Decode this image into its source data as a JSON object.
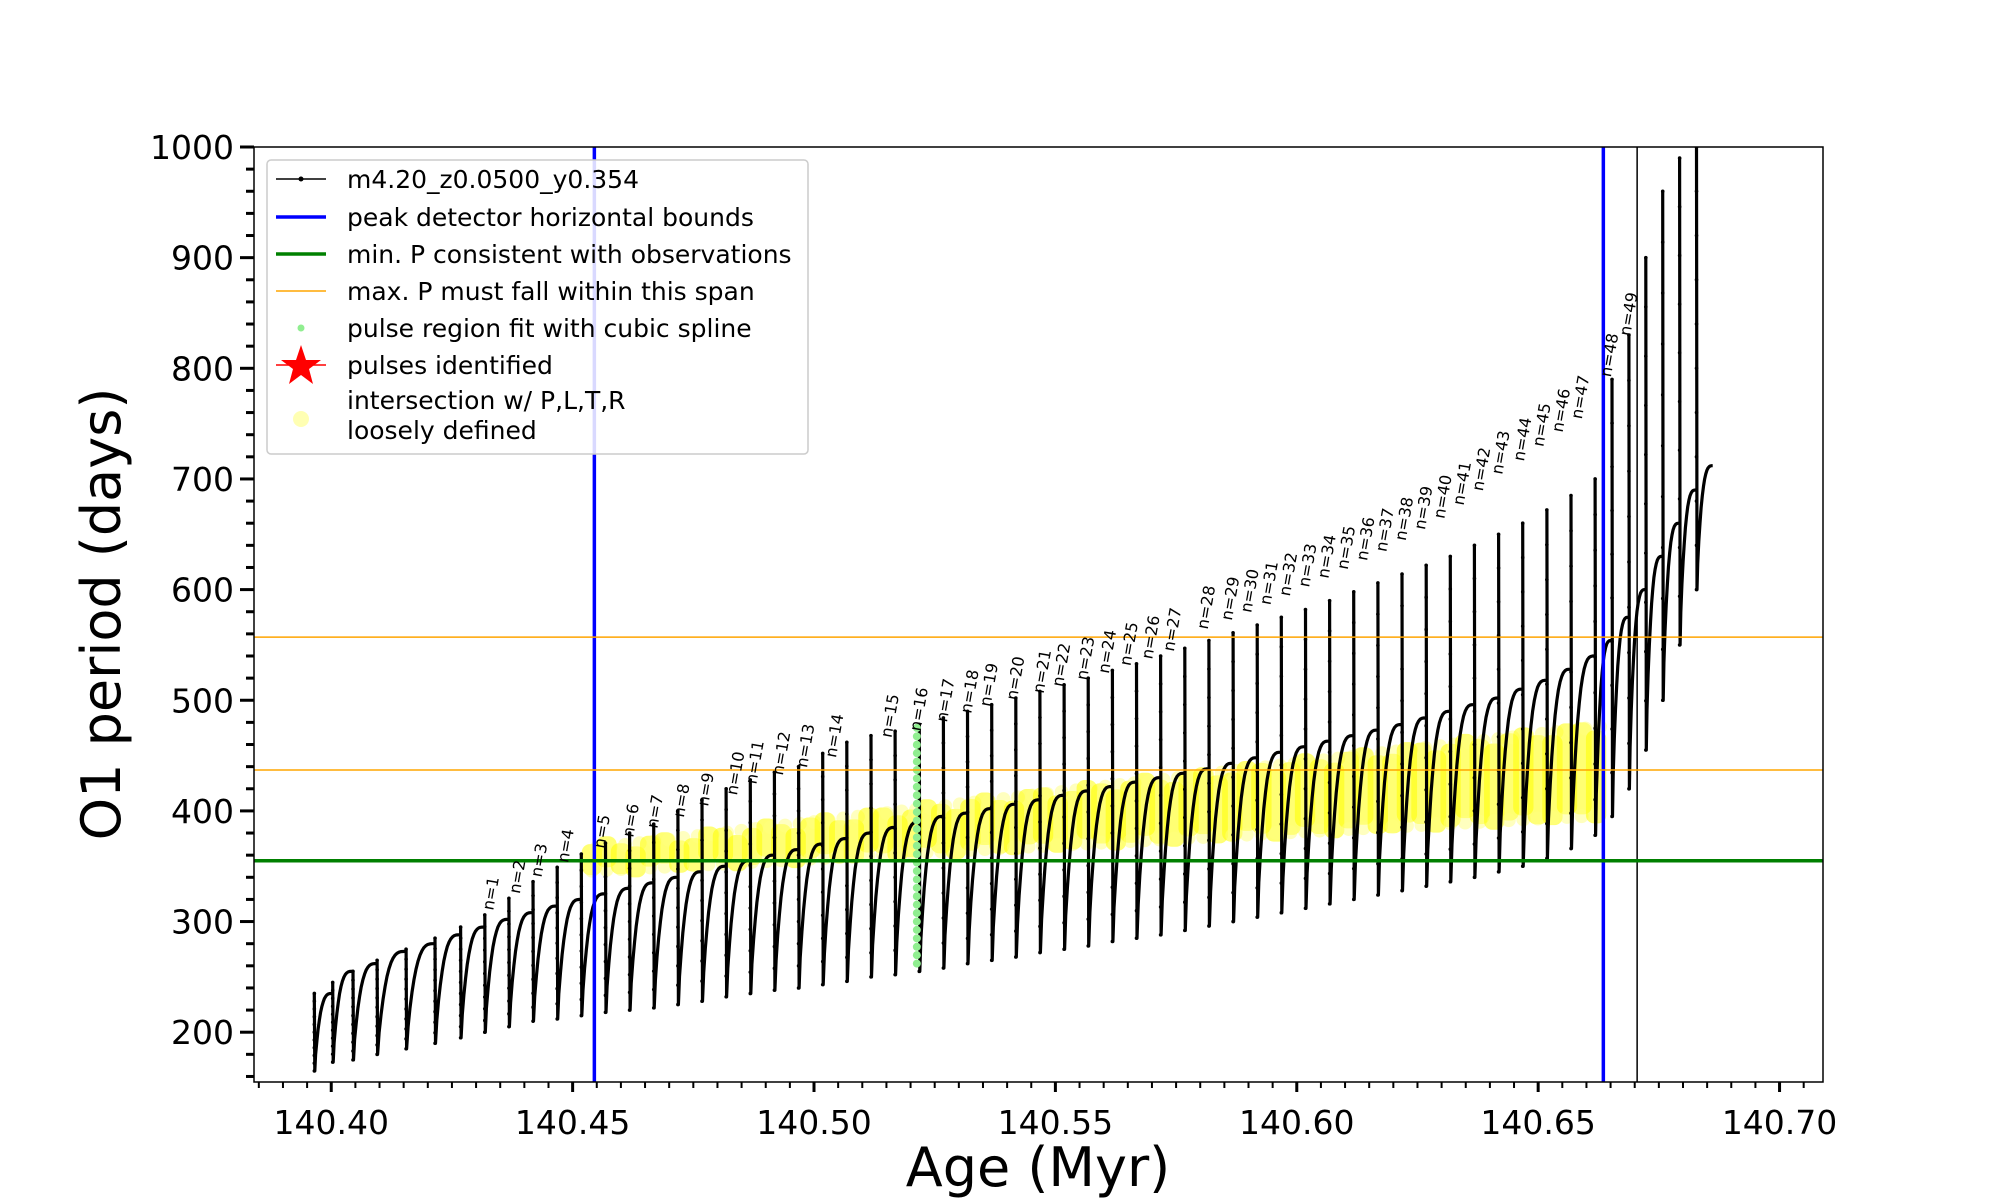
{
  "chart_data": {
    "type": "line",
    "xlabel": "Age (Myr)",
    "ylabel": "O1 period (days)",
    "xlim": [
      140.384,
      140.709
    ],
    "ylim": [
      155,
      1000
    ],
    "xticks": [
      140.4,
      140.45,
      140.5,
      140.55,
      140.6,
      140.65,
      140.7
    ],
    "xtick_labels": [
      "140.40",
      "140.45",
      "140.50",
      "140.55",
      "140.60",
      "140.65",
      "140.70"
    ],
    "yticks": [
      200,
      300,
      400,
      500,
      600,
      700,
      800,
      900,
      1000
    ],
    "ytick_labels": [
      "200",
      "300",
      "400",
      "500",
      "600",
      "700",
      "800",
      "900",
      "1000"
    ],
    "legend": {
      "position": "upper-left",
      "entries": [
        {
          "label": "m4.20_z0.0500_y0.354",
          "style": "line-dot",
          "color": "#000000"
        },
        {
          "label": "peak detector horizontal bounds",
          "style": "line",
          "color": "#0000ff"
        },
        {
          "label": "min. P consistent with observations",
          "style": "line",
          "color": "#008000"
        },
        {
          "label": "max. P must fall within this span",
          "style": "line",
          "color": "#ffa500"
        },
        {
          "label": "pulse region fit with cubic spline",
          "style": "dot",
          "color": "#90ee90"
        },
        {
          "label": "pulses identified",
          "style": "star",
          "color": "#ff0000"
        },
        {
          "label": "intersection w/ P,L,T,R",
          "label2": "loosely defined",
          "style": "dot",
          "color": "#ffff80"
        }
      ]
    },
    "vlines": [
      {
        "x": 140.4545,
        "color": "#0000ff",
        "name": "peak-detector-left-bound"
      },
      {
        "x": 140.6635,
        "color": "#0000ff",
        "name": "peak-detector-right-bound"
      },
      {
        "x": 140.6705,
        "color": "#000000",
        "name": "track-jump"
      }
    ],
    "hlines": [
      {
        "y": 355,
        "color": "#008000",
        "name": "min-period-line"
      },
      {
        "y": 437,
        "color": "#ffa500",
        "name": "max-period-lower-line"
      },
      {
        "y": 557,
        "color": "#ffa500",
        "name": "max-period-upper-line"
      }
    ],
    "series": {
      "name": "m4.20_z0.0500_y0.354",
      "note": "thermal-pulse cycles; each cycle starts at start_x with period low, rises to trough_top, spikes to peak",
      "cycles": [
        {
          "n": 1,
          "start_x": 140.3965,
          "low": 165,
          "trough_top": 235,
          "peak": 235
        },
        {
          "n": 2,
          "start_x": 140.4003,
          "low": 173,
          "trough_top": 255,
          "peak": 245
        },
        {
          "n": 3,
          "start_x": 140.4045,
          "low": 175,
          "trough_top": 262,
          "peak": 255
        },
        {
          "n": 4,
          "start_x": 140.4095,
          "low": 180,
          "trough_top": 273,
          "peak": 265
        },
        {
          "n": 5,
          "start_x": 140.4155,
          "low": 185,
          "trough_top": 280,
          "peak": 275
        },
        {
          "n": 6,
          "start_x": 140.4215,
          "low": 190,
          "trough_top": 288,
          "peak": 285
        },
        {
          "n": 7,
          "start_x": 140.4268,
          "low": 195,
          "trough_top": 295,
          "peak": 295
        },
        {
          "n": 8,
          "start_x": 140.4318,
          "low": 200,
          "trough_top": 302,
          "peak": 306
        },
        {
          "n": 9,
          "start_x": 140.4368,
          "low": 205,
          "trough_top": 308,
          "peak": 321
        },
        {
          "n": 10,
          "start_x": 140.4418,
          "low": 210,
          "trough_top": 314,
          "peak": 336
        },
        {
          "n": 11,
          "start_x": 140.4468,
          "low": 212,
          "trough_top": 320,
          "peak": 349
        },
        {
          "n": 12,
          "start_x": 140.4518,
          "low": 215,
          "trough_top": 325,
          "peak": 361
        },
        {
          "n": 13,
          "start_x": 140.4568,
          "low": 218,
          "trough_top": 330,
          "peak": 371
        },
        {
          "n": 14,
          "start_x": 140.4618,
          "low": 220,
          "trough_top": 335,
          "peak": 380
        },
        {
          "n": 15,
          "start_x": 140.4668,
          "low": 222,
          "trough_top": 340,
          "peak": 388
        },
        {
          "n": 16,
          "start_x": 140.4718,
          "low": 225,
          "trough_top": 345,
          "peak": 400
        },
        {
          "n": 17,
          "start_x": 140.4768,
          "low": 228,
          "trough_top": 350,
          "peak": 410
        },
        {
          "n": 18,
          "start_x": 140.4818,
          "low": 232,
          "trough_top": 355,
          "peak": 420
        },
        {
          "n": 19,
          "start_x": 140.4868,
          "low": 235,
          "trough_top": 360,
          "peak": 428
        },
        {
          "n": 20,
          "start_x": 140.4918,
          "low": 238,
          "trough_top": 365,
          "peak": 435
        },
        {
          "n": 21,
          "start_x": 140.4968,
          "low": 240,
          "trough_top": 370,
          "peak": 440
        },
        {
          "n": 22,
          "start_x": 140.5018,
          "low": 243,
          "trough_top": 375,
          "peak": 452
        },
        {
          "n": 23,
          "start_x": 140.5068,
          "low": 246,
          "trough_top": 380,
          "peak": 462
        },
        {
          "n": 24,
          "start_x": 140.5118,
          "low": 250,
          "trough_top": 385,
          "peak": 468
        },
        {
          "n": 25,
          "start_x": 140.5168,
          "low": 252,
          "trough_top": 390,
          "peak": 472
        },
        {
          "n": 26,
          "start_x": 140.5218,
          "low": 255,
          "trough_top": 395,
          "peak": 478
        },
        {
          "n": 27,
          "start_x": 140.5268,
          "low": 258,
          "trough_top": 398,
          "peak": 484
        },
        {
          "n": 28,
          "start_x": 140.5318,
          "low": 262,
          "trough_top": 402,
          "peak": 490
        },
        {
          "n": 29,
          "start_x": 140.5368,
          "low": 265,
          "trough_top": 406,
          "peak": 496
        },
        {
          "n": 30,
          "start_x": 140.5418,
          "low": 268,
          "trough_top": 410,
          "peak": 502
        },
        {
          "n": 31,
          "start_x": 140.5468,
          "low": 272,
          "trough_top": 414,
          "peak": 508
        },
        {
          "n": 32,
          "start_x": 140.5518,
          "low": 275,
          "trough_top": 418,
          "peak": 514
        },
        {
          "n": 33,
          "start_x": 140.5568,
          "low": 278,
          "trough_top": 422,
          "peak": 520
        },
        {
          "n": 34,
          "start_x": 140.5618,
          "low": 282,
          "trough_top": 426,
          "peak": 527
        },
        {
          "n": 35,
          "start_x": 140.5668,
          "low": 285,
          "trough_top": 430,
          "peak": 533
        },
        {
          "n": 36,
          "start_x": 140.5718,
          "low": 288,
          "trough_top": 434,
          "peak": 540
        },
        {
          "n": 37,
          "start_x": 140.5768,
          "low": 292,
          "trough_top": 438,
          "peak": 547
        },
        {
          "n": 38,
          "start_x": 140.5818,
          "low": 296,
          "trough_top": 443,
          "peak": 554
        },
        {
          "n": 39,
          "start_x": 140.5868,
          "low": 300,
          "trough_top": 448,
          "peak": 561
        },
        {
          "n": 40,
          "start_x": 140.5918,
          "low": 304,
          "trough_top": 453,
          "peak": 568
        },
        {
          "n": 41,
          "start_x": 140.5968,
          "low": 308,
          "trough_top": 458,
          "peak": 575
        },
        {
          "n": 42,
          "start_x": 140.6018,
          "low": 312,
          "trough_top": 463,
          "peak": 582
        },
        {
          "n": 43,
          "start_x": 140.6068,
          "low": 316,
          "trough_top": 468,
          "peak": 590
        },
        {
          "n": 44,
          "start_x": 140.6118,
          "low": 320,
          "trough_top": 473,
          "peak": 598
        },
        {
          "n": 45,
          "start_x": 140.6168,
          "low": 324,
          "trough_top": 478,
          "peak": 606
        },
        {
          "n": 46,
          "start_x": 140.6218,
          "low": 328,
          "trough_top": 484,
          "peak": 614
        },
        {
          "n": 47,
          "start_x": 140.6268,
          "low": 332,
          "trough_top": 490,
          "peak": 622
        },
        {
          "n": 48,
          "start_x": 140.6318,
          "low": 336,
          "trough_top": 496,
          "peak": 630
        },
        {
          "n": 49,
          "start_x": 140.6368,
          "low": 340,
          "trough_top": 502,
          "peak": 640
        },
        {
          "n": 50,
          "start_x": 140.6418,
          "low": 345,
          "trough_top": 510,
          "peak": 650
        },
        {
          "n": 51,
          "start_x": 140.6468,
          "low": 350,
          "trough_top": 518,
          "peak": 660
        },
        {
          "n": 52,
          "start_x": 140.6518,
          "low": 357,
          "trough_top": 528,
          "peak": 672
        },
        {
          "n": 53,
          "start_x": 140.6568,
          "low": 366,
          "trough_top": 540,
          "peak": 685
        },
        {
          "n": 54,
          "start_x": 140.6618,
          "low": 378,
          "trough_top": 554,
          "peak": 700
        },
        {
          "n": 55,
          "start_x": 140.6653,
          "low": 395,
          "trough_top": 575,
          "peak": 790
        },
        {
          "n": 56,
          "start_x": 140.6688,
          "low": 420,
          "trough_top": 600,
          "peak": 830
        },
        {
          "n": 57,
          "start_x": 140.6723,
          "low": 455,
          "trough_top": 630,
          "peak": 900
        },
        {
          "n": 58,
          "start_x": 140.6758,
          "low": 500,
          "trough_top": 660,
          "peak": 960
        },
        {
          "n": 59,
          "start_x": 140.6793,
          "low": 550,
          "trough_top": 690,
          "peak": 990
        },
        {
          "n": 60,
          "start_x": 140.6828,
          "low": 600,
          "trough_top": 712,
          "peak": 1000
        }
      ]
    },
    "pulses": [
      {
        "label": "n=1",
        "x": 140.4325,
        "y": 306
      },
      {
        "label": "n=2",
        "x": 140.438,
        "y": 321
      },
      {
        "label": "n=3",
        "x": 140.4425,
        "y": 336
      },
      {
        "label": "n=4",
        "x": 140.448,
        "y": 349
      },
      {
        "label": "n=5",
        "x": 140.4555,
        "y": 362
      },
      {
        "label": "n=6",
        "x": 140.4615,
        "y": 372
      },
      {
        "label": "n=7",
        "x": 140.4665,
        "y": 380
      },
      {
        "label": "n=8",
        "x": 140.472,
        "y": 390
      },
      {
        "label": "n=9",
        "x": 140.477,
        "y": 400
      },
      {
        "label": "n=10",
        "x": 140.483,
        "y": 410
      },
      {
        "label": "n=11",
        "x": 140.487,
        "y": 420
      },
      {
        "label": "n=12",
        "x": 140.4925,
        "y": 428
      },
      {
        "label": "n=13",
        "x": 140.4975,
        "y": 435
      },
      {
        "label": "n=14",
        "x": 140.5035,
        "y": 444
      },
      {
        "label": "n=15",
        "x": 140.515,
        "y": 462
      },
      {
        "label": "n=16",
        "x": 140.521,
        "y": 468
      },
      {
        "label": "n=17",
        "x": 140.5265,
        "y": 476
      },
      {
        "label": "n=18",
        "x": 140.5315,
        "y": 484
      },
      {
        "label": "n=19",
        "x": 140.5355,
        "y": 490
      },
      {
        "label": "n=20",
        "x": 140.541,
        "y": 496
      },
      {
        "label": "n=21",
        "x": 140.5465,
        "y": 502
      },
      {
        "label": "n=22",
        "x": 140.5505,
        "y": 508
      },
      {
        "label": "n=23",
        "x": 140.5555,
        "y": 514
      },
      {
        "label": "n=24",
        "x": 140.56,
        "y": 520
      },
      {
        "label": "n=25",
        "x": 140.5645,
        "y": 527
      },
      {
        "label": "n=26",
        "x": 140.569,
        "y": 533
      },
      {
        "label": "n=27",
        "x": 140.5735,
        "y": 540
      },
      {
        "label": "n=28",
        "x": 140.5805,
        "y": 560
      },
      {
        "label": "n=29",
        "x": 140.5855,
        "y": 568
      },
      {
        "label": "n=30",
        "x": 140.5895,
        "y": 575
      },
      {
        "label": "n=31",
        "x": 140.5935,
        "y": 582
      },
      {
        "label": "n=32",
        "x": 140.5975,
        "y": 590
      },
      {
        "label": "n=33",
        "x": 140.6015,
        "y": 598
      },
      {
        "label": "n=34",
        "x": 140.6055,
        "y": 606
      },
      {
        "label": "n=35",
        "x": 140.6095,
        "y": 614
      },
      {
        "label": "n=36",
        "x": 140.6135,
        "y": 622
      },
      {
        "label": "n=37",
        "x": 140.6175,
        "y": 630
      },
      {
        "label": "n=38",
        "x": 140.6215,
        "y": 640
      },
      {
        "label": "n=39",
        "x": 140.6255,
        "y": 650
      },
      {
        "label": "n=40",
        "x": 140.6295,
        "y": 660
      },
      {
        "label": "n=41",
        "x": 140.6335,
        "y": 672
      },
      {
        "label": "n=42",
        "x": 140.6375,
        "y": 685
      },
      {
        "label": "n=43",
        "x": 140.6415,
        "y": 700
      },
      {
        "label": "n=44",
        "x": 140.646,
        "y": 712
      },
      {
        "label": "n=45",
        "x": 140.65,
        "y": 725
      },
      {
        "label": "n=46",
        "x": 140.654,
        "y": 738
      },
      {
        "label": "n=47",
        "x": 140.658,
        "y": 750
      },
      {
        "label": "n=48",
        "x": 140.664,
        "y": 788
      },
      {
        "label": "n=49",
        "x": 140.668,
        "y": 825
      }
    ],
    "spline_region": {
      "x": 140.5213,
      "y_min": 262,
      "y_max": 475
    },
    "intersection_band": {
      "x_range": [
        140.454,
        140.662
      ],
      "lower_y_start": 350,
      "lower_y_end": 400,
      "upper_y_start": 362,
      "upper_y_end": 472,
      "note": "dense yellow band lies mostly between y 350 and y 440"
    }
  }
}
